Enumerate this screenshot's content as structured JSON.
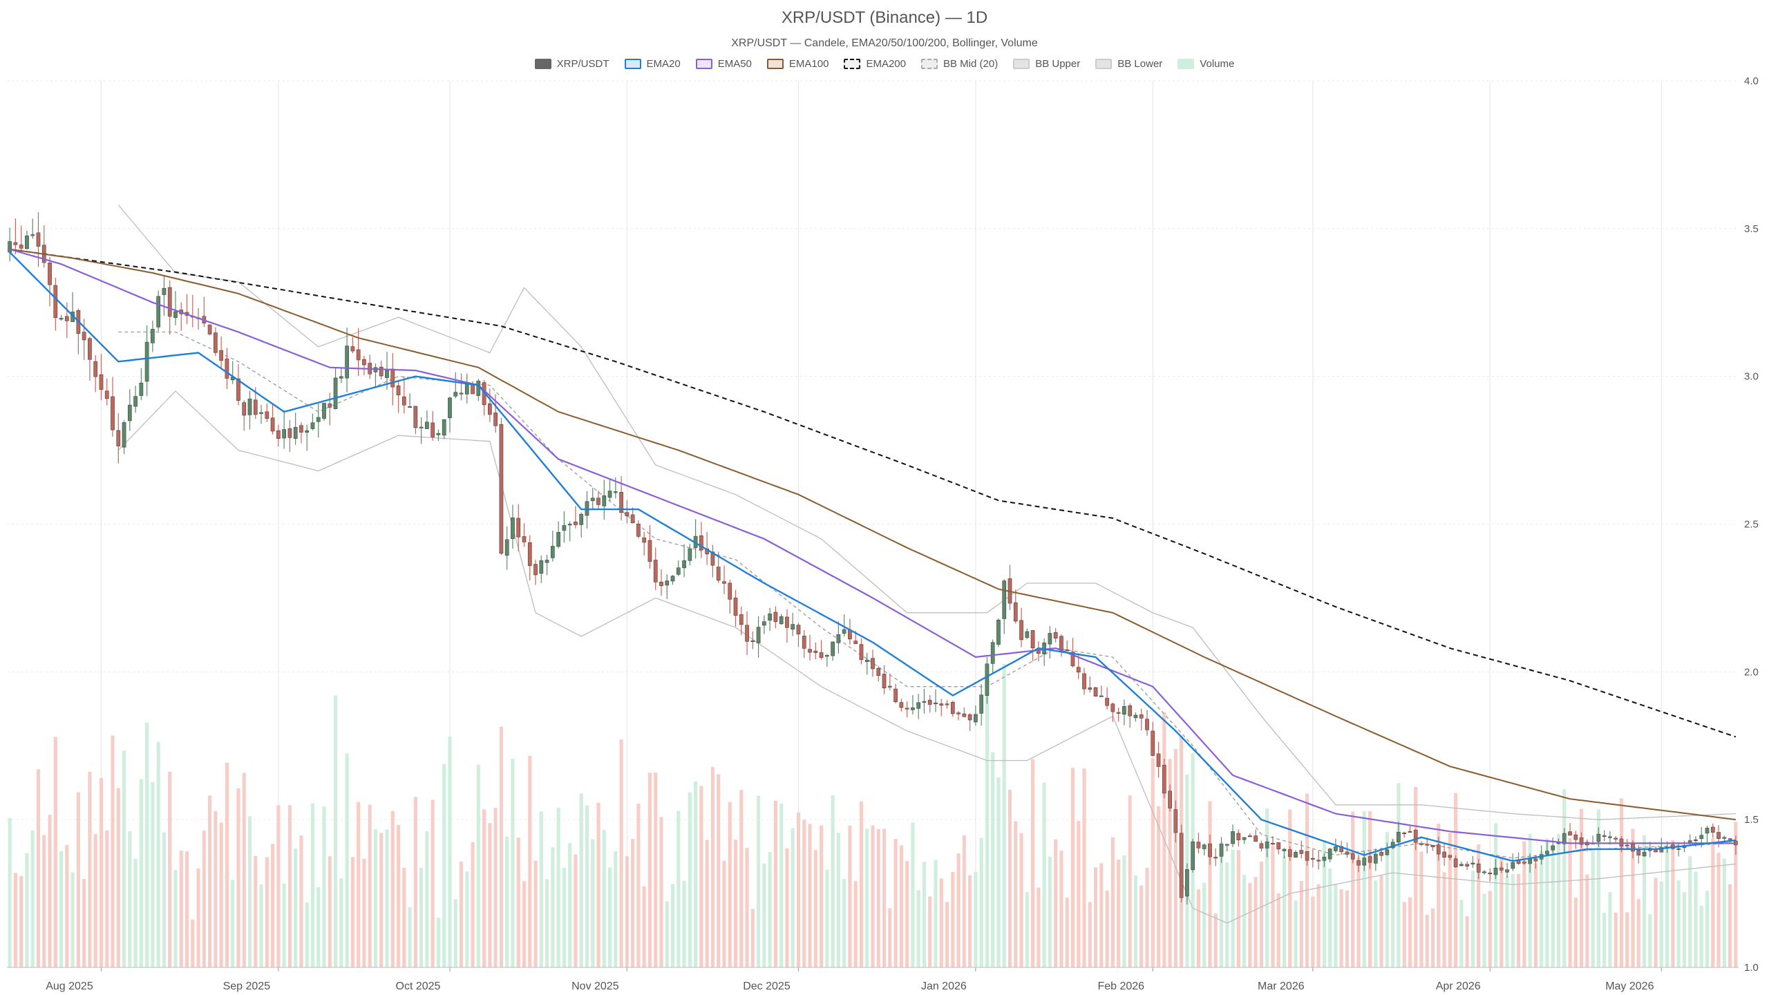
{
  "header": {
    "title": "XRP/USDT (Binance) — 1D",
    "subtitle": "XRP/USDT — Candele, EMA20/50/100/200, Bollinger, Volume"
  },
  "legend": [
    {
      "label": "XRP/USDT",
      "fill": "#666666",
      "border": "#666666",
      "dashed": false
    },
    {
      "label": "EMA20",
      "fill": "#dbe9f7",
      "border": "#1f7fd6",
      "dashed": false
    },
    {
      "label": "EMA50",
      "fill": "#ece6f7",
      "border": "#8a5ed6",
      "dashed": false
    },
    {
      "label": "EMA100",
      "fill": "#f0e4da",
      "border": "#8b5a2b",
      "dashed": false
    },
    {
      "label": "EMA200",
      "fill": "#f2f2f2",
      "border": "#111111",
      "dashed": true
    },
    {
      "label": "BB Mid (20)",
      "fill": "#eeeeee",
      "border": "#aaaaaa",
      "dashed": true
    },
    {
      "label": "BB Upper",
      "fill": "#e4e4e4",
      "border": "#cccccc",
      "dashed": false
    },
    {
      "label": "BB Lower",
      "fill": "#e4e4e4",
      "border": "#cccccc",
      "dashed": false
    },
    {
      "label": "Volume",
      "fill": "#cfeedd",
      "border": "#cfeedd",
      "dashed": false
    }
  ],
  "chart_data": {
    "type": "candlestick",
    "x_start": "2025-07-16",
    "x_end": "2026-05-14",
    "x_tick_labels": [
      "Aug 2025",
      "Sep 2025",
      "Oct 2025",
      "Nov 2025",
      "Dec 2025",
      "Jan 2026",
      "Feb 2026",
      "Mar 2026",
      "Apr 2026",
      "May 2026"
    ],
    "y_tick_labels": [
      "1.0",
      "1.5",
      "2.0",
      "2.5",
      "3.0",
      "3.5",
      "4.0"
    ],
    "y_range": [
      1.0,
      4.0
    ],
    "y_axis_side": "right",
    "grid": true,
    "colors": {
      "up": "#5b8a6b",
      "down": "#c0675c",
      "volume_up": "#cfeedd",
      "volume_down": "#f7cdc8"
    },
    "close_anchors": [
      [
        "2025-07-16",
        3.42
      ],
      [
        "2025-07-18",
        3.45
      ],
      [
        "2025-07-20",
        3.48
      ],
      [
        "2025-07-22",
        3.4
      ],
      [
        "2025-07-24",
        3.18
      ],
      [
        "2025-07-27",
        3.2
      ],
      [
        "2025-08-01",
        2.95
      ],
      [
        "2025-08-04",
        2.78
      ],
      [
        "2025-08-08",
        3.0
      ],
      [
        "2025-08-11",
        3.28
      ],
      [
        "2025-08-14",
        3.22
      ],
      [
        "2025-08-18",
        3.18
      ],
      [
        "2025-08-22",
        3.05
      ],
      [
        "2025-08-26",
        2.9
      ],
      [
        "2025-08-29",
        2.9
      ],
      [
        "2025-09-01",
        2.82
      ],
      [
        "2025-09-05",
        2.82
      ],
      [
        "2025-09-10",
        2.9
      ],
      [
        "2025-09-13",
        3.08
      ],
      [
        "2025-09-16",
        3.05
      ],
      [
        "2025-09-20",
        3.02
      ],
      [
        "2025-09-25",
        2.85
      ],
      [
        "2025-09-28",
        2.8
      ],
      [
        "2025-10-02",
        2.95
      ],
      [
        "2025-10-06",
        2.98
      ],
      [
        "2025-10-09",
        2.85
      ],
      [
        "2025-10-10",
        2.4
      ],
      [
        "2025-10-12",
        2.5
      ],
      [
        "2025-10-16",
        2.35
      ],
      [
        "2025-10-20",
        2.45
      ],
      [
        "2025-10-24",
        2.55
      ],
      [
        "2025-10-29",
        2.62
      ],
      [
        "2025-11-03",
        2.48
      ],
      [
        "2025-11-06",
        2.28
      ],
      [
        "2025-11-10",
        2.35
      ],
      [
        "2025-11-13",
        2.45
      ],
      [
        "2025-11-18",
        2.28
      ],
      [
        "2025-11-22",
        2.1
      ],
      [
        "2025-11-26",
        2.2
      ],
      [
        "2025-12-01",
        2.12
      ],
      [
        "2025-12-05",
        2.05
      ],
      [
        "2025-12-09",
        2.12
      ],
      [
        "2025-12-14",
        2.02
      ],
      [
        "2025-12-18",
        1.9
      ],
      [
        "2025-12-22",
        1.88
      ],
      [
        "2025-12-27",
        1.87
      ],
      [
        "2026-01-01",
        1.85
      ],
      [
        "2026-01-04",
        2.1
      ],
      [
        "2026-01-06",
        2.3
      ],
      [
        "2026-01-08",
        2.15
      ],
      [
        "2026-01-12",
        2.08
      ],
      [
        "2026-01-15",
        2.12
      ],
      [
        "2026-01-20",
        1.95
      ],
      [
        "2026-01-25",
        1.88
      ],
      [
        "2026-01-30",
        1.86
      ],
      [
        "2026-02-03",
        1.6
      ],
      [
        "2026-02-05",
        1.45
      ],
      [
        "2026-02-06",
        1.25
      ],
      [
        "2026-02-08",
        1.42
      ],
      [
        "2026-02-12",
        1.38
      ],
      [
        "2026-02-15",
        1.45
      ],
      [
        "2026-02-20",
        1.42
      ],
      [
        "2026-02-25",
        1.38
      ],
      [
        "2026-03-01",
        1.36
      ],
      [
        "2026-03-05",
        1.4
      ],
      [
        "2026-03-09",
        1.36
      ],
      [
        "2026-03-13",
        1.38
      ],
      [
        "2026-03-17",
        1.47
      ],
      [
        "2026-03-20",
        1.42
      ],
      [
        "2026-03-26",
        1.35
      ],
      [
        "2026-03-31",
        1.33
      ],
      [
        "2026-04-05",
        1.35
      ],
      [
        "2026-04-10",
        1.38
      ],
      [
        "2026-04-14",
        1.44
      ],
      [
        "2026-04-18",
        1.43
      ],
      [
        "2026-04-22",
        1.44
      ],
      [
        "2026-04-26",
        1.39
      ],
      [
        "2026-05-01",
        1.4
      ],
      [
        "2026-05-05",
        1.42
      ],
      [
        "2026-05-09",
        1.47
      ],
      [
        "2026-05-12",
        1.43
      ],
      [
        "2026-05-14",
        1.42
      ]
    ],
    "ema_anchors": {
      "EMA20": [
        [
          "2025-07-16",
          3.42
        ],
        [
          "2025-08-04",
          3.05
        ],
        [
          "2025-08-18",
          3.08
        ],
        [
          "2025-09-02",
          2.88
        ],
        [
          "2025-09-25",
          3.0
        ],
        [
          "2025-10-06",
          2.97
        ],
        [
          "2025-10-24",
          2.55
        ],
        [
          "2025-11-03",
          2.55
        ],
        [
          "2025-11-25",
          2.3
        ],
        [
          "2025-12-14",
          2.1
        ],
        [
          "2025-12-28",
          1.92
        ],
        [
          "2026-01-12",
          2.08
        ],
        [
          "2026-01-22",
          2.05
        ],
        [
          "2026-02-05",
          1.8
        ],
        [
          "2026-02-20",
          1.5
        ],
        [
          "2026-03-10",
          1.38
        ],
        [
          "2026-03-20",
          1.44
        ],
        [
          "2026-04-05",
          1.36
        ],
        [
          "2026-04-18",
          1.4
        ],
        [
          "2026-04-30",
          1.4
        ],
        [
          "2026-05-14",
          1.43
        ]
      ],
      "EMA50": [
        [
          "2025-07-16",
          3.43
        ],
        [
          "2025-07-25",
          3.38
        ],
        [
          "2025-08-10",
          3.25
        ],
        [
          "2025-08-25",
          3.15
        ],
        [
          "2025-09-10",
          3.03
        ],
        [
          "2025-09-25",
          3.02
        ],
        [
          "2025-10-06",
          2.97
        ],
        [
          "2025-10-20",
          2.72
        ],
        [
          "2025-11-05",
          2.6
        ],
        [
          "2025-11-25",
          2.45
        ],
        [
          "2025-12-14",
          2.25
        ],
        [
          "2026-01-01",
          2.05
        ],
        [
          "2026-01-15",
          2.08
        ],
        [
          "2026-02-01",
          1.95
        ],
        [
          "2026-02-15",
          1.65
        ],
        [
          "2026-03-05",
          1.52
        ],
        [
          "2026-03-25",
          1.46
        ],
        [
          "2026-04-15",
          1.42
        ],
        [
          "2026-05-14",
          1.42
        ]
      ],
      "EMA100": [
        [
          "2025-07-16",
          3.43
        ],
        [
          "2025-07-27",
          3.4
        ],
        [
          "2025-08-10",
          3.35
        ],
        [
          "2025-08-25",
          3.28
        ],
        [
          "2025-09-15",
          3.13
        ],
        [
          "2025-10-06",
          3.03
        ],
        [
          "2025-10-20",
          2.88
        ],
        [
          "2025-11-10",
          2.75
        ],
        [
          "2025-12-01",
          2.6
        ],
        [
          "2025-12-20",
          2.42
        ],
        [
          "2026-01-05",
          2.28
        ],
        [
          "2026-01-25",
          2.2
        ],
        [
          "2026-02-10",
          2.05
        ],
        [
          "2026-03-05",
          1.85
        ],
        [
          "2026-03-25",
          1.68
        ],
        [
          "2026-04-15",
          1.57
        ],
        [
          "2026-05-14",
          1.5
        ]
      ],
      "EMA200": [
        [
          "2025-07-16",
          3.43
        ],
        [
          "2025-08-15",
          3.35
        ],
        [
          "2025-09-15",
          3.25
        ],
        [
          "2025-10-10",
          3.17
        ],
        [
          "2025-10-30",
          3.05
        ],
        [
          "2025-11-25",
          2.88
        ],
        [
          "2025-12-20",
          2.7
        ],
        [
          "2026-01-05",
          2.58
        ],
        [
          "2026-01-25",
          2.52
        ],
        [
          "2026-02-10",
          2.4
        ],
        [
          "2026-03-05",
          2.22
        ],
        [
          "2026-03-25",
          2.08
        ],
        [
          "2026-04-15",
          1.97
        ],
        [
          "2026-05-14",
          1.78
        ]
      ]
    },
    "bollinger_anchors": {
      "upper": [
        [
          "2025-08-04",
          3.58
        ],
        [
          "2025-08-14",
          3.35
        ],
        [
          "2025-08-25",
          3.32
        ],
        [
          "2025-09-08",
          3.1
        ],
        [
          "2025-09-22",
          3.2
        ],
        [
          "2025-10-08",
          3.08
        ],
        [
          "2025-10-14",
          3.3
        ],
        [
          "2025-10-24",
          3.1
        ],
        [
          "2025-11-06",
          2.7
        ],
        [
          "2025-11-20",
          2.6
        ],
        [
          "2025-12-05",
          2.45
        ],
        [
          "2025-12-20",
          2.2
        ],
        [
          "2026-01-03",
          2.2
        ],
        [
          "2026-01-10",
          2.3
        ],
        [
          "2026-01-22",
          2.3
        ],
        [
          "2026-02-01",
          2.2
        ],
        [
          "2026-02-08",
          2.15
        ],
        [
          "2026-02-20",
          1.85
        ],
        [
          "2026-03-05",
          1.55
        ],
        [
          "2026-03-20",
          1.55
        ],
        [
          "2026-04-05",
          1.52
        ],
        [
          "2026-04-20",
          1.5
        ],
        [
          "2026-05-14",
          1.52
        ]
      ],
      "mid": [
        [
          "2025-08-04",
          3.15
        ],
        [
          "2025-08-14",
          3.15
        ],
        [
          "2025-08-25",
          3.05
        ],
        [
          "2025-09-08",
          2.88
        ],
        [
          "2025-09-22",
          3.0
        ],
        [
          "2025-10-08",
          2.97
        ],
        [
          "2025-10-20",
          2.72
        ],
        [
          "2025-11-06",
          2.45
        ],
        [
          "2025-11-20",
          2.38
        ],
        [
          "2025-12-05",
          2.15
        ],
        [
          "2025-12-20",
          1.95
        ],
        [
          "2026-01-03",
          1.95
        ],
        [
          "2026-01-15",
          2.08
        ],
        [
          "2026-01-25",
          2.05
        ],
        [
          "2026-02-08",
          1.75
        ],
        [
          "2026-02-20",
          1.45
        ],
        [
          "2026-03-05",
          1.38
        ],
        [
          "2026-03-20",
          1.42
        ],
        [
          "2026-04-05",
          1.37
        ],
        [
          "2026-04-20",
          1.4
        ],
        [
          "2026-05-14",
          1.42
        ]
      ],
      "lower": [
        [
          "2025-08-04",
          2.75
        ],
        [
          "2025-08-14",
          2.95
        ],
        [
          "2025-08-25",
          2.75
        ],
        [
          "2025-09-08",
          2.68
        ],
        [
          "2025-09-22",
          2.8
        ],
        [
          "2025-10-08",
          2.78
        ],
        [
          "2025-10-16",
          2.2
        ],
        [
          "2025-10-24",
          2.12
        ],
        [
          "2025-11-06",
          2.25
        ],
        [
          "2025-11-20",
          2.15
        ],
        [
          "2025-12-05",
          1.95
        ],
        [
          "2025-12-20",
          1.8
        ],
        [
          "2026-01-03",
          1.7
        ],
        [
          "2026-01-10",
          1.7
        ],
        [
          "2026-01-25",
          1.85
        ],
        [
          "2026-02-08",
          1.2
        ],
        [
          "2026-02-14",
          1.15
        ],
        [
          "2026-02-25",
          1.25
        ],
        [
          "2026-03-15",
          1.32
        ],
        [
          "2026-04-05",
          1.28
        ],
        [
          "2026-04-20",
          1.3
        ],
        [
          "2026-05-14",
          1.35
        ]
      ]
    }
  }
}
